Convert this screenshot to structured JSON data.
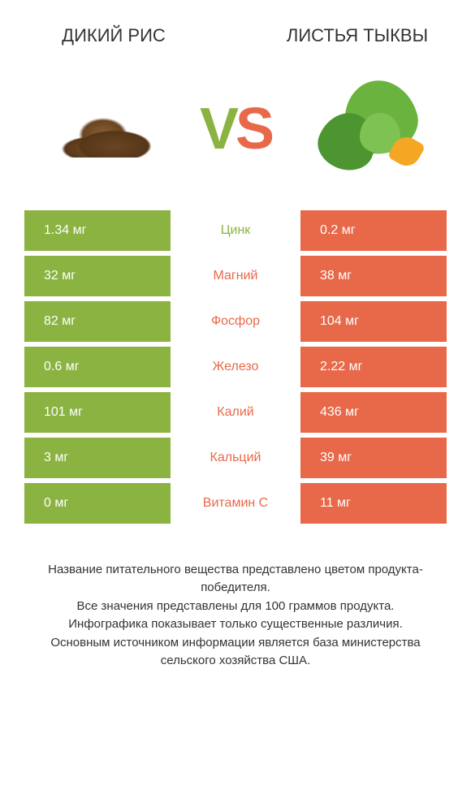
{
  "header": {
    "left_title": "ДИКИЙ РИС",
    "right_title": "ЛИСТЬЯ ТЫКВЫ"
  },
  "colors": {
    "left": "#8bb341",
    "right": "#e8694a",
    "text": "#333333"
  },
  "vs": {
    "v": "V",
    "s": "S"
  },
  "rows": [
    {
      "left": "1.34 мг",
      "label": "Цинк",
      "right": "0.2 мг",
      "winner": "left"
    },
    {
      "left": "32 мг",
      "label": "Магний",
      "right": "38 мг",
      "winner": "right"
    },
    {
      "left": "82 мг",
      "label": "Фосфор",
      "right": "104 мг",
      "winner": "right"
    },
    {
      "left": "0.6 мг",
      "label": "Железо",
      "right": "2.22 мг",
      "winner": "right"
    },
    {
      "left": "101 мг",
      "label": "Калий",
      "right": "436 мг",
      "winner": "right"
    },
    {
      "left": "3 мг",
      "label": "Кальций",
      "right": "39 мг",
      "winner": "right"
    },
    {
      "left": "0 мг",
      "label": "Витамин C",
      "right": "11 мг",
      "winner": "right"
    }
  ],
  "footer": {
    "line1": "Название питательного вещества представлено цветом продукта-победителя.",
    "line2": "Все значения представлены для 100 граммов продукта.",
    "line3": "Инфографика показывает только существенные различия.",
    "line4": "Основным источником информации является база министерства сельского хозяйства США."
  }
}
